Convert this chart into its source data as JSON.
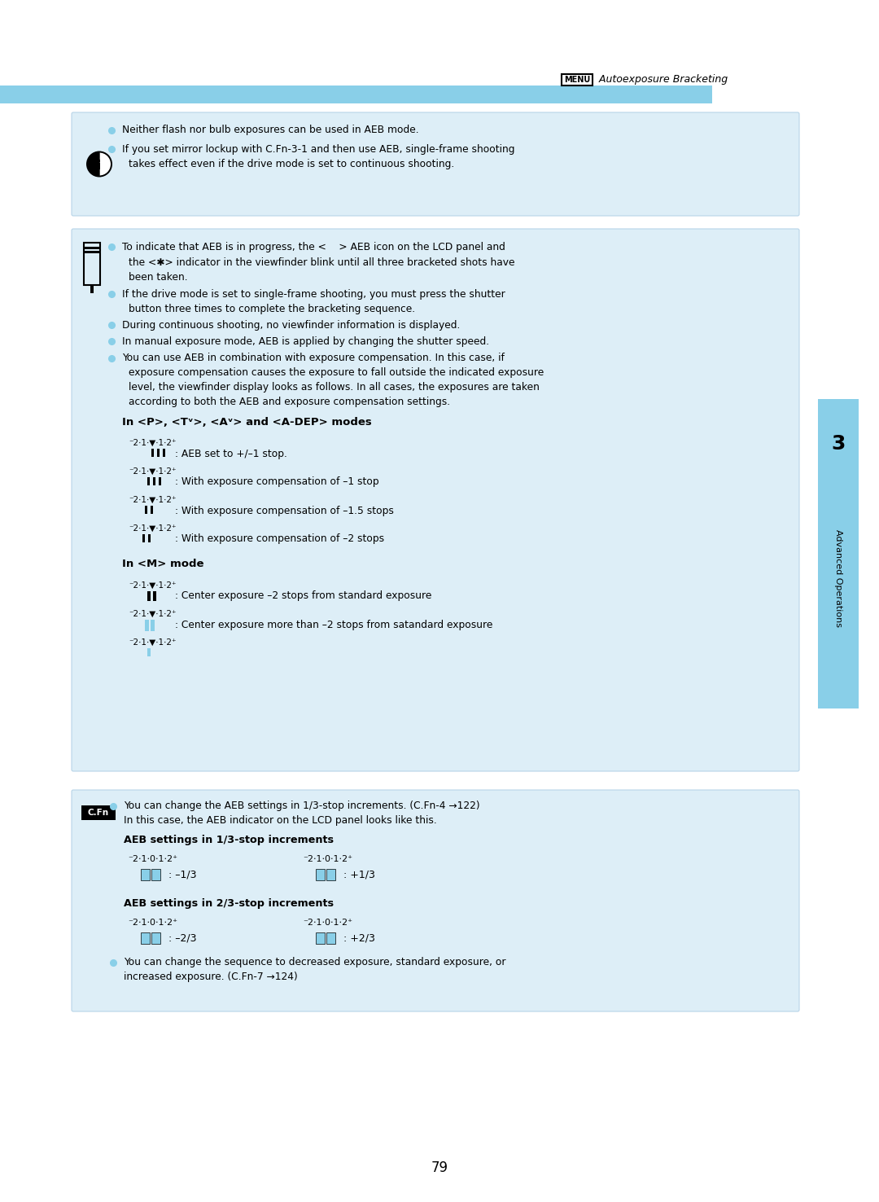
{
  "page_bg": "#ffffff",
  "header_text_menu": "MENU",
  "header_text_rest": " Autoexposure Bracketing",
  "blue_bar_color": "#89cfe8",
  "light_blue_bg": "#ddeef7",
  "sidebar_color": "#89cfe8",
  "sidebar_number": "3",
  "sidebar_text": "Advanced Operations",
  "page_number": "79",
  "s1_bullets": [
    "Neither flash nor bulb exposures can be used in AEB mode.",
    "If you set mirror lockup with C.Fn-3-1 and then use AEB, single-frame shooting",
    "takes effect even if the drive mode is set to continuous shooting."
  ],
  "s2_b1_l1": "To indicate that AEB is in progress, the <",
  "s2_b1_l2": "> AEB icon on the LCD panel and",
  "s2_b1_l3": "the <✱> indicator in the viewfinder blink until all three bracketed shots have",
  "s2_b1_l4": "been taken.",
  "s2_b2_l1": "If the drive mode is set to single-frame shooting, you must press the shutter",
  "s2_b2_l2": "button three times to complete the bracketing sequence.",
  "s2_b3": "During continuous shooting, no viewfinder information is displayed.",
  "s2_b4": "In manual exposure mode, AEB is applied by changing the shutter speed.",
  "s2_b5_l1": "You can use AEB in combination with exposure compensation. In this case, if",
  "s2_b5_l2": "exposure compensation causes the exposure to fall outside the indicated exposure",
  "s2_b5_l3": "level, the viewfinder display looks as follows. In all cases, the exposures are taken",
  "s2_b5_l4": "according to both the AEB and exposure compensation settings.",
  "modes_header": "In <P>, <Tv>, <Av> and <A‧DEP> modes",
  "modes_items": [
    ": AEB set to +/–1 stop.",
    ": With exposure compensation of –1 stop",
    ": With exposure compensation of –1.5 stops",
    ": With exposure compensation of –2 stops"
  ],
  "m_mode_header": "In <M> mode",
  "m_mode_items": [
    ": Center exposure –2 stops from standard exposure",
    ": Center exposure more than –2 stops from satandard exposure",
    ""
  ],
  "cfn_b1_l1": "You can change the AEB settings in 1/3-stop increments. (C.Fn-4 →122)",
  "cfn_b1_l2": "In this case, the AEB indicator on the LCD panel looks like this.",
  "aeb_13_header": "AEB settings in 1/3-stop increments",
  "aeb_13_label1": ": –1/3",
  "aeb_13_label2": ": +1/3",
  "aeb_23_header": "AEB settings in 2/3-stop increments",
  "aeb_23_label1": ": –2/3",
  "aeb_23_label2": ": +2/3",
  "last_b_l1": "You can change the sequence to decreased exposure, standard exposure, or",
  "last_b_l2": "increased exposure. (C.Fn-7 →124)"
}
